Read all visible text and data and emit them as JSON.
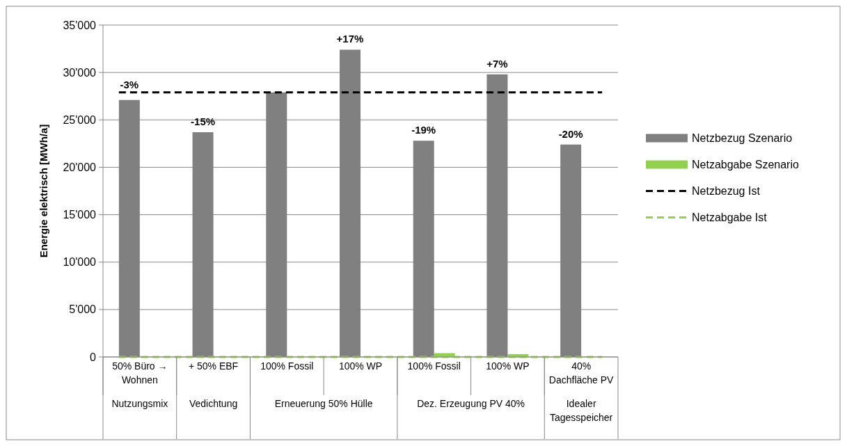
{
  "chart_data": {
    "type": "bar",
    "ylabel": "Energie elektrisch [MWh/a]",
    "categories": [
      "50% Büro → Wohnen",
      "+ 50% EBF",
      "100% Fossil",
      "100% WP",
      "100% Fossil",
      "100% WP",
      "40% Dachfläche PV"
    ],
    "series": [
      {
        "name": "Netzbezug Szenario",
        "color": "#808080",
        "values": [
          27100,
          23700,
          27900,
          32400,
          22800,
          29800,
          22400
        ]
      },
      {
        "name": "Netzabgabe Szenario",
        "color": "#92d050",
        "values": [
          0,
          0,
          0,
          0,
          400,
          300,
          0
        ]
      }
    ],
    "ref_lines": [
      {
        "axis": "y",
        "value": 27900,
        "label": "Netzbezug Ist",
        "color": "#000000",
        "line_style": "dashed"
      },
      {
        "axis": "y",
        "value": 0,
        "label": "Netzabgabe Ist",
        "color": "#92d050",
        "line_style": "dashed"
      }
    ],
    "annotations": [
      "Nutzungsmix",
      "Vedichtung",
      "Erneuerung 50% Hülle",
      "Dez. Erzeugung PV 40%",
      "Idealer Tagesspeicher",
      "-3%",
      "-15%",
      "+17%",
      "-19%",
      "+7%",
      "-20%"
    ],
    "ylim": [
      0,
      35000
    ],
    "yticks": [
      {
        "value": 0,
        "label": "0"
      },
      {
        "value": 5000,
        "label": "5'000"
      },
      {
        "value": 10000,
        "label": "10'000"
      },
      {
        "value": 15000,
        "label": "15'000"
      },
      {
        "value": 20000,
        "label": "20'000"
      },
      {
        "value": 25000,
        "label": "25'000"
      },
      {
        "value": 30000,
        "label": "30'000"
      },
      {
        "value": 35000,
        "label": "35'000"
      }
    ],
    "grid": "y",
    "legend": "right"
  }
}
